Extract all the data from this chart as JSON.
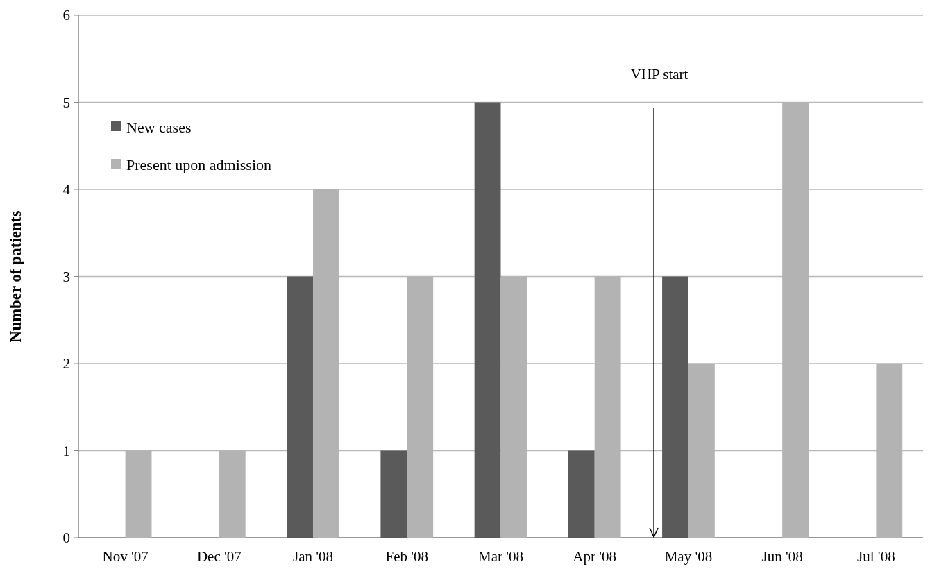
{
  "chart_data": {
    "type": "bar",
    "ylabel": "Number of patients",
    "categories": [
      "Nov '07",
      "Dec '07",
      "Jan '08",
      "Feb '08",
      "Mar '08",
      "Apr '08",
      "May '08",
      "Jun '08",
      "Jul '08"
    ],
    "series": [
      {
        "name": "New cases",
        "color": "#5a5a5a",
        "values": [
          0,
          0,
          3,
          1,
          5,
          1,
          3,
          0,
          0
        ]
      },
      {
        "name": "Present upon admission",
        "color": "#b3b3b3",
        "values": [
          1,
          1,
          4,
          3,
          3,
          3,
          2,
          5,
          2
        ]
      }
    ],
    "ylim": [
      0,
      6
    ],
    "yticks": [
      0,
      1,
      2,
      3,
      4,
      5,
      6
    ],
    "grid": "y",
    "legend": "top left",
    "ref_lines": [
      {
        "axis": "x",
        "value": "May '08",
        "label": "VHP start",
        "color": "#000000"
      }
    ]
  }
}
